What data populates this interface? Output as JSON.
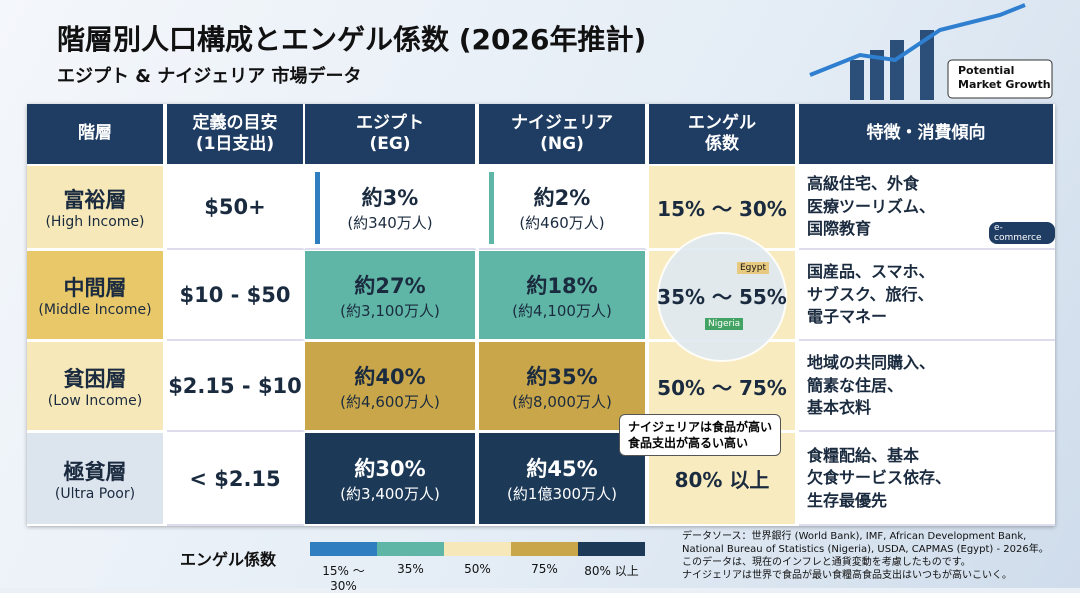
{
  "header": {
    "title": "階層別人口構成とエンゲル係数 (2026年推計)",
    "subtitle": "エジプト & ナイジェリア 市場データ",
    "badge": [
      "Potential",
      "Market Growth"
    ]
  },
  "table": {
    "columns": [
      [
        "階層"
      ],
      [
        "定義の目安",
        "(1日支出)"
      ],
      [
        "エジプト",
        "(EG)"
      ],
      [
        "ナイジェリア",
        "(NG)"
      ],
      [
        "エンゲル",
        "係数"
      ],
      [
        "特徴・消費傾向"
      ]
    ],
    "rows": [
      {
        "name": "富裕層",
        "name_en": "(High Income)",
        "spend": "$50+",
        "eg": [
          "約3%",
          "(約340万人)"
        ],
        "ng": [
          "約2%",
          "(約460万人)"
        ],
        "engel": "15% ～ 30%",
        "traits": [
          "高級住宅、外食",
          "医療ツーリズム、",
          "国際教育"
        ]
      },
      {
        "name": "中間層",
        "name_en": "(Middle Income)",
        "spend": "$10 - $50",
        "eg": [
          "約27%",
          "(約3,100万人)"
        ],
        "ng": [
          "約18%",
          "(約4,100万人)"
        ],
        "engel": "35% ～ 55%",
        "traits": [
          "国産品、スマホ、",
          "サブスク、旅行、",
          "電子マネー"
        ]
      },
      {
        "name": "貧困層",
        "name_en": "(Low Income)",
        "spend": "$2.15 - $10",
        "eg": [
          "約40%",
          "(約4,600万人)"
        ],
        "ng": [
          "約35%",
          "(約8,000万人)"
        ],
        "engel": "50% ～ 75%",
        "traits": [
          "地域の共同購入、",
          "簡素な住居、",
          "基本衣料"
        ]
      },
      {
        "name": "極貧層",
        "name_en": "(Ultra Poor)",
        "spend": "< $2.15",
        "eg": [
          "約30%",
          "(約3,400万人)"
        ],
        "ng": [
          "約45%",
          "(約1億300万人)"
        ],
        "engel": "80% 以上",
        "traits": [
          "食糧配給、基本",
          "欠食サービス依存、",
          "生存最優先"
        ]
      }
    ]
  },
  "callout": [
    "ナイジェリアは食品が高い",
    "食品支出が高るい高い"
  ],
  "map_labels": [
    "Egypt",
    "Nigeria"
  ],
  "ecommerce": "e-commerce",
  "legend": {
    "title": "エンゲル係数",
    "labels": [
      "15% ～ 30%",
      "35%",
      "50%",
      "75%",
      "80% 以上"
    ]
  },
  "source": [
    "データソース：世界銀行 (World Bank), IMF, African Development Bank,",
    "National Bureau of Statistics (Nigeria), USDA, CAPMAS (Egypt) - 2026年。",
    "このデータは、現在のインフレと通貨変動を考慮したものです。",
    "ナイジェリアは世界で食品が最い食糧高食品支出はいつもが高いこいく。"
  ]
}
